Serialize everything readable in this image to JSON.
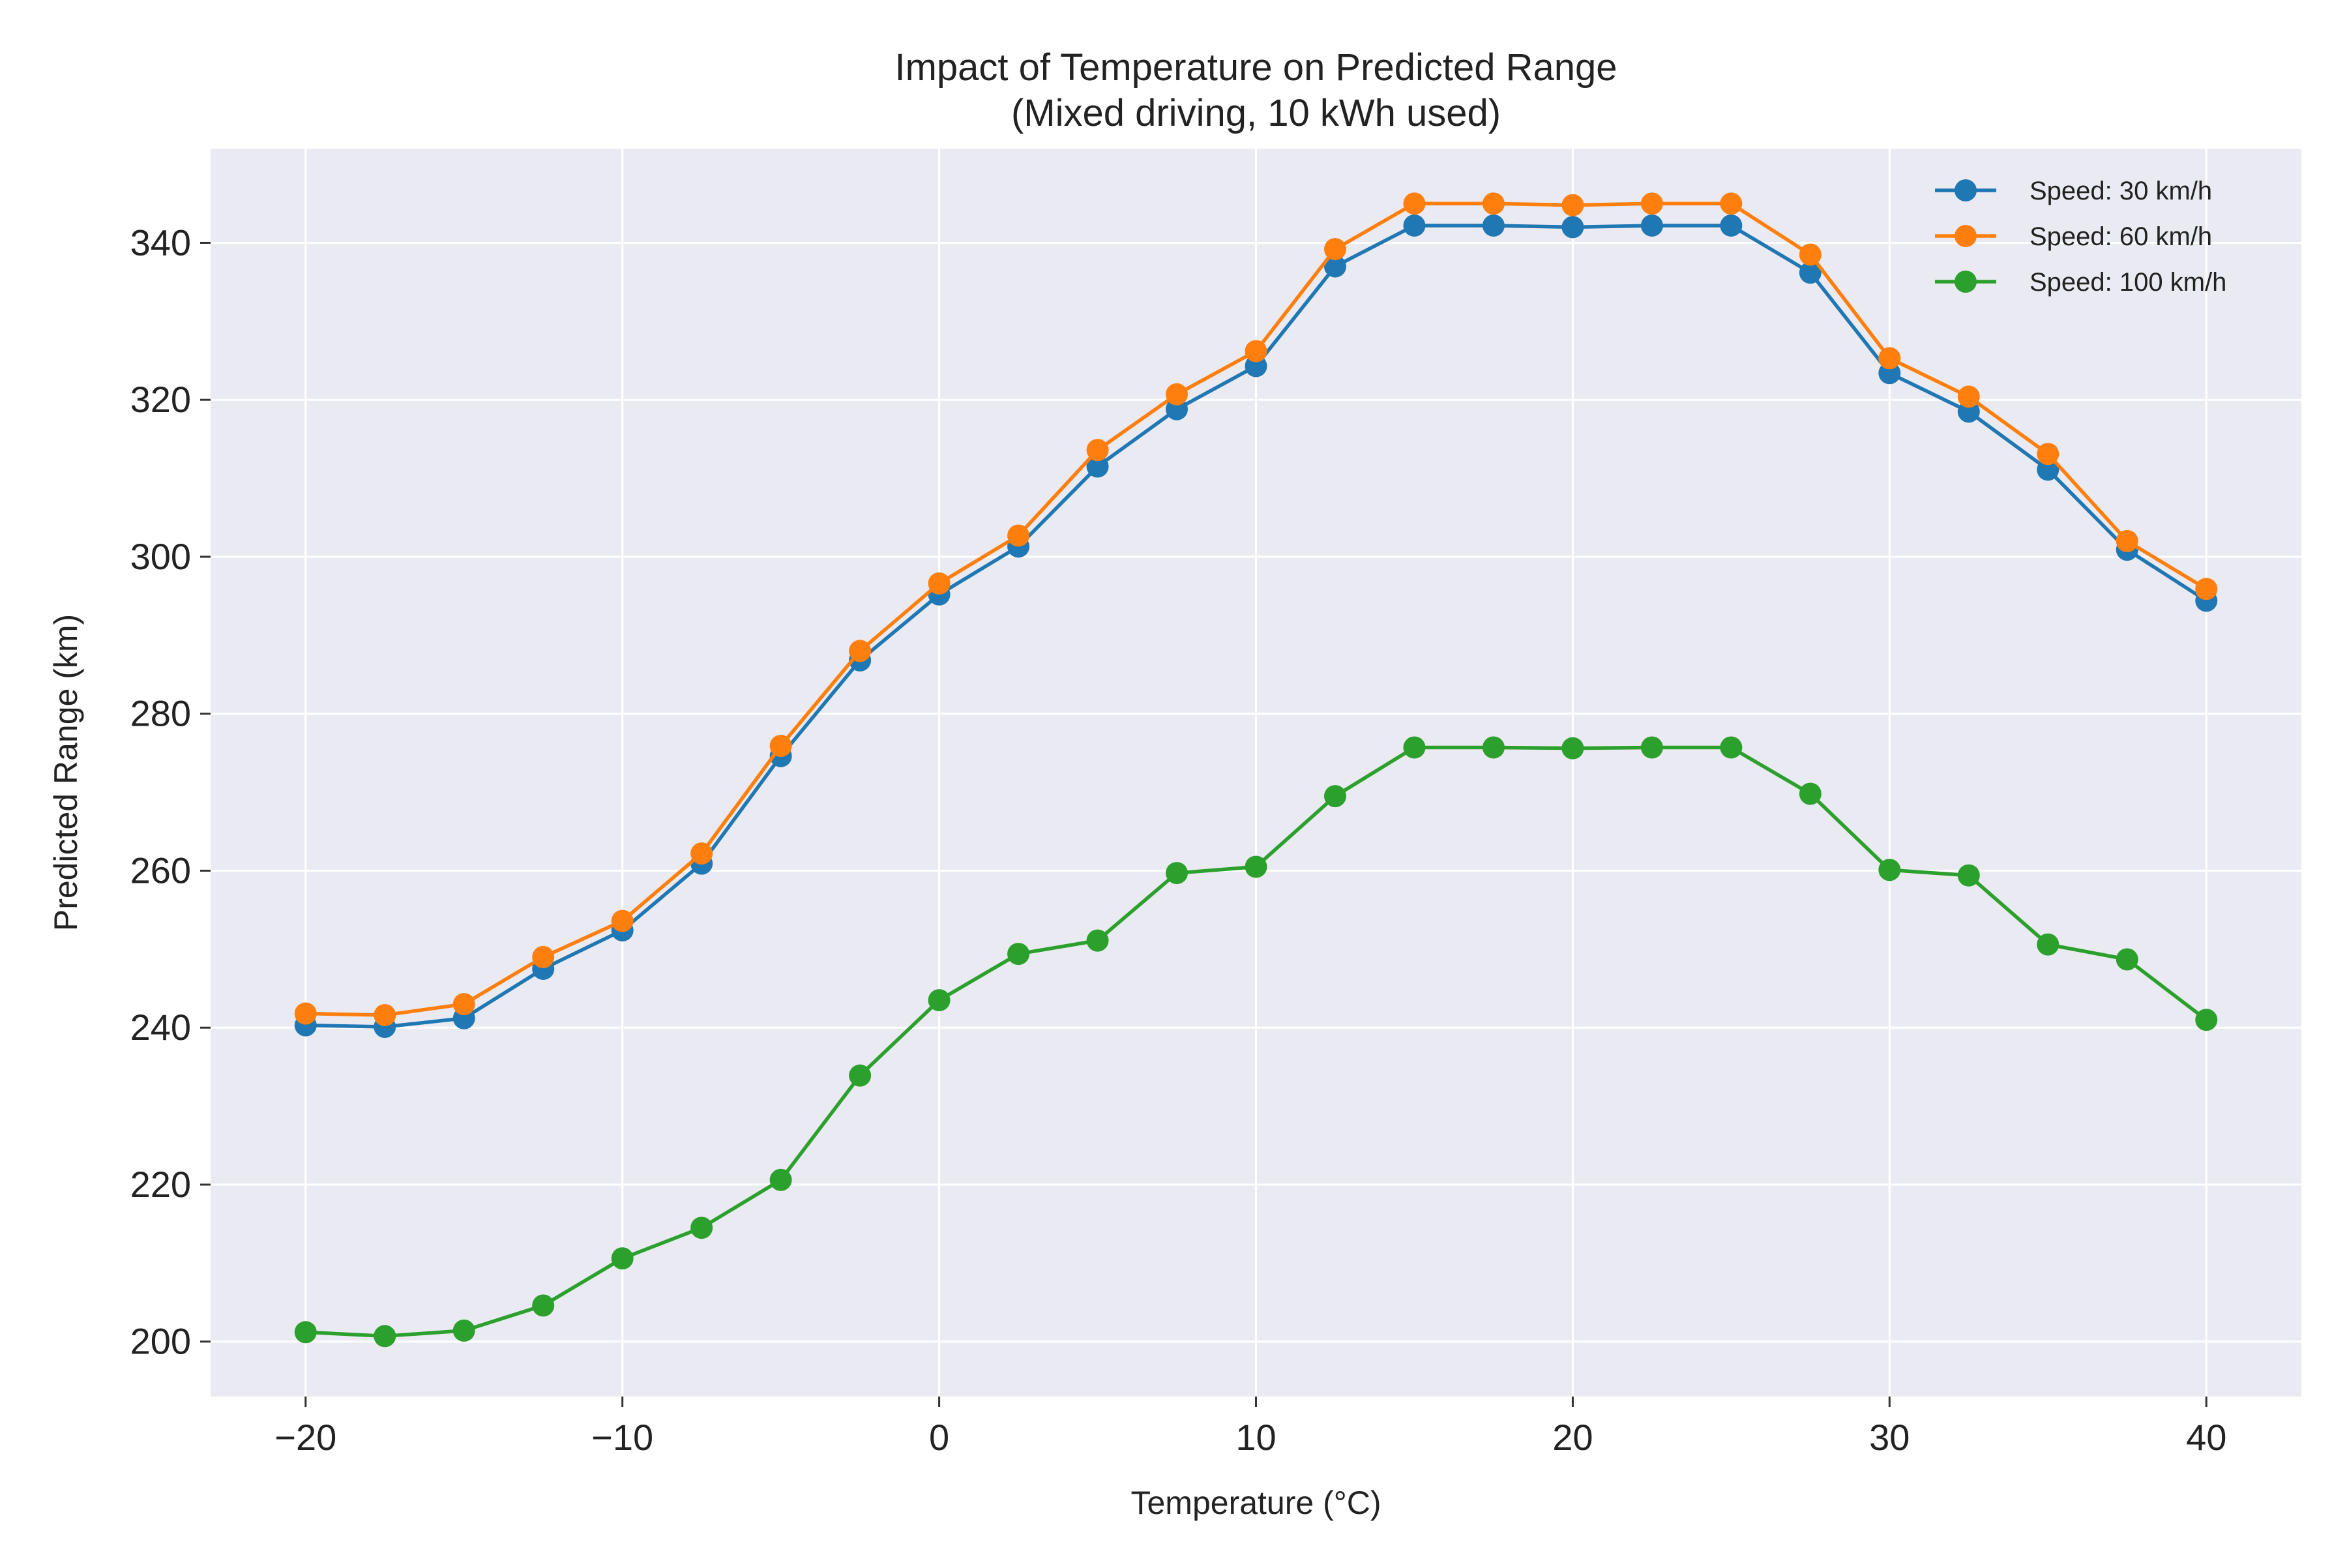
{
  "chart_data": {
    "type": "line",
    "title": "Impact of Temperature on Predicted Range",
    "subtitle": "(Mixed driving, 10 kWh used)",
    "xlabel": "Temperature (°C)",
    "ylabel": "Predicted Range (km)",
    "xlim": [
      -23,
      43
    ],
    "ylim": [
      193,
      352
    ],
    "xticks": [
      -20,
      -10,
      0,
      10,
      20,
      30,
      40
    ],
    "xtick_labels": [
      "−20",
      "−10",
      "0",
      "10",
      "20",
      "30",
      "40"
    ],
    "yticks": [
      200,
      220,
      240,
      260,
      280,
      300,
      320,
      340
    ],
    "ytick_labels": [
      "200",
      "220",
      "240",
      "260",
      "280",
      "300",
      "320",
      "340"
    ],
    "grid": true,
    "legend_position": "top-right",
    "x": [
      -20,
      -17.5,
      -15,
      -12.5,
      -10,
      -7.5,
      -5,
      -2.5,
      0,
      2.5,
      5,
      7.5,
      10,
      12.5,
      15,
      17.5,
      20,
      22.5,
      25,
      27.5,
      30,
      32.5,
      35,
      37.5,
      40
    ],
    "series": [
      {
        "name": "Speed: 30 km/h",
        "color": "#1f77b4",
        "values": [
          240.3,
          240.1,
          241.2,
          247.5,
          252.4,
          260.9,
          274.6,
          286.8,
          295.2,
          301.3,
          311.5,
          318.8,
          324.3,
          337.0,
          342.2,
          342.2,
          342.0,
          342.2,
          342.2,
          336.2,
          323.4,
          318.5,
          311.1,
          300.9,
          294.4
        ]
      },
      {
        "name": "Speed: 60 km/h",
        "color": "#ff7f0e",
        "values": [
          241.8,
          241.6,
          243.0,
          249.0,
          253.6,
          262.2,
          275.9,
          288.0,
          296.6,
          302.7,
          313.6,
          320.7,
          326.2,
          339.2,
          345.0,
          345.0,
          344.8,
          345.0,
          345.0,
          338.5,
          325.3,
          320.4,
          313.1,
          302.0,
          295.9
        ]
      },
      {
        "name": "Speed: 100 km/h",
        "color": "#2ca02c",
        "values": [
          201.2,
          200.7,
          201.4,
          204.6,
          210.6,
          214.5,
          220.6,
          233.9,
          243.5,
          249.4,
          251.1,
          259.7,
          260.5,
          269.5,
          275.7,
          275.7,
          275.6,
          275.7,
          275.7,
          269.8,
          260.1,
          259.4,
          250.6,
          248.7,
          241.0
        ]
      }
    ]
  }
}
